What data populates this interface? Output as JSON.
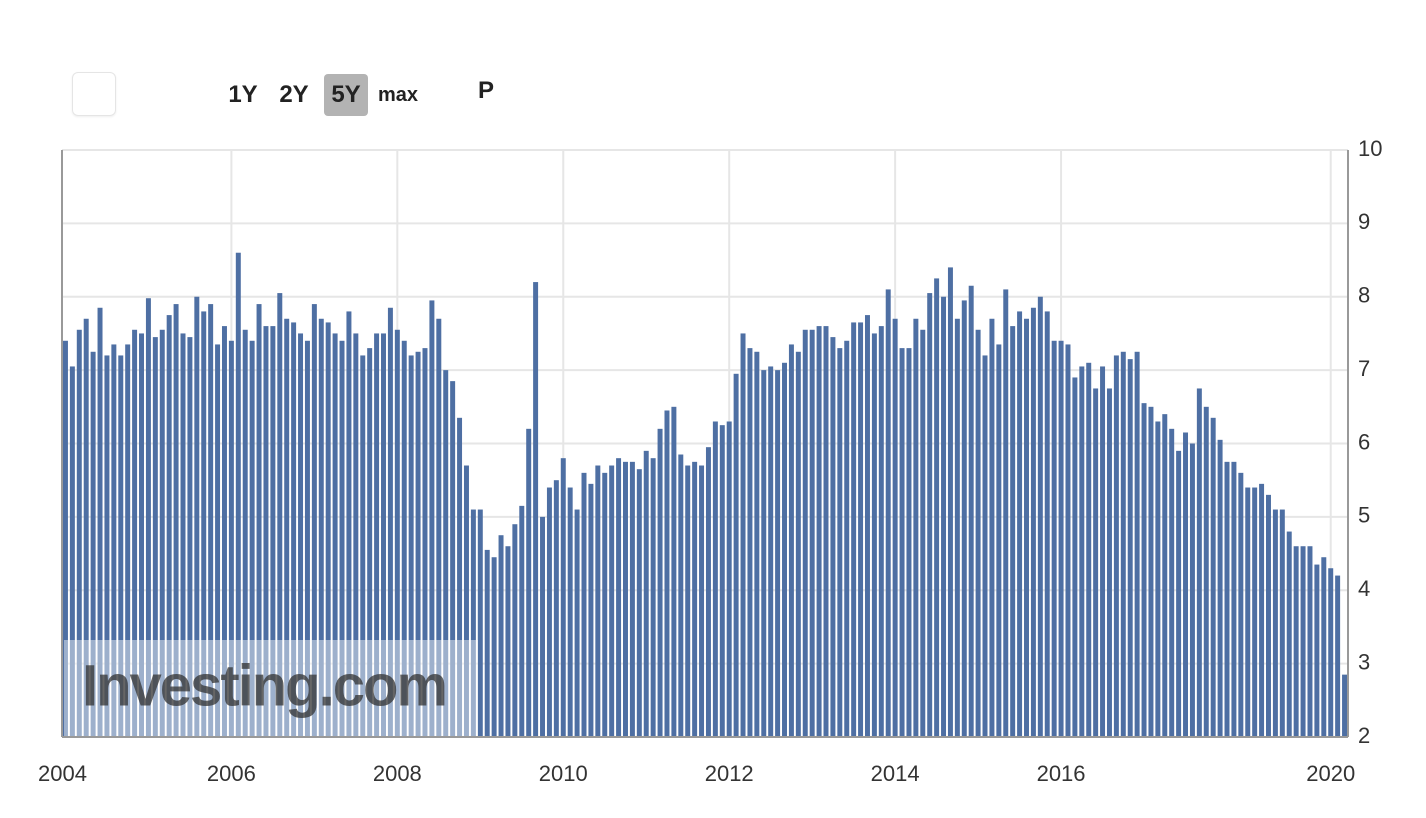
{
  "range_buttons": [
    "1Y",
    "2Y",
    "5Y",
    "max"
  ],
  "selected_range": "5Y",
  "extra_button": "P",
  "chart_data": {
    "type": "bar",
    "watermark": "Investing.com",
    "color": "#4e6fa3",
    "ylim": [
      2,
      10
    ],
    "yticks": [
      2,
      3,
      4,
      5,
      6,
      7,
      8,
      9,
      10
    ],
    "grid": true,
    "categories": [
      "2004",
      null,
      null,
      null,
      null,
      null,
      null,
      null,
      null,
      null,
      null,
      null,
      null,
      null,
      null,
      null,
      null,
      null,
      null,
      null,
      null,
      null,
      null,
      null,
      "2006",
      null,
      null,
      null,
      null,
      null,
      null,
      null,
      null,
      null,
      null,
      null,
      null,
      null,
      null,
      null,
      null,
      null,
      null,
      null,
      null,
      null,
      null,
      null,
      "2008",
      null,
      null,
      null,
      null,
      null,
      null,
      null,
      null,
      null,
      null,
      null,
      null,
      null,
      null,
      null,
      null,
      null,
      null,
      null,
      null,
      null,
      null,
      null,
      "2010",
      null,
      null,
      null,
      null,
      null,
      null,
      null,
      null,
      null,
      null,
      null,
      null,
      null,
      null,
      null,
      null,
      null,
      null,
      null,
      null,
      null,
      null,
      null,
      "2012",
      null,
      null,
      null,
      null,
      null,
      null,
      null,
      null,
      null,
      null,
      null,
      null,
      null,
      null,
      null,
      null,
      null,
      null,
      null,
      null,
      null,
      null,
      null,
      "2014",
      null,
      null,
      null,
      null,
      null,
      null,
      null,
      null,
      null,
      null,
      null,
      null,
      null,
      null,
      null,
      null,
      null,
      null,
      null,
      null,
      null,
      null,
      null,
      "2016",
      null,
      null,
      null,
      null,
      null,
      null,
      null,
      null,
      null,
      null,
      null,
      null,
      null,
      null,
      null,
      null,
      null,
      null,
      null,
      null,
      null,
      null,
      null,
      null,
      null,
      null,
      null,
      null,
      null,
      null,
      null,
      null,
      null,
      null,
      null,
      null,
      null,
      null,
      "2020",
      null,
      null
    ],
    "values": [
      7.4,
      7.05,
      7.55,
      7.7,
      7.25,
      7.85,
      7.2,
      7.35,
      7.2,
      7.35,
      7.55,
      7.5,
      7.98,
      7.45,
      7.55,
      7.75,
      7.9,
      7.5,
      7.45,
      8.0,
      7.8,
      7.9,
      7.35,
      7.6,
      7.4,
      8.6,
      7.55,
      7.4,
      7.9,
      7.6,
      7.6,
      8.05,
      7.7,
      7.65,
      7.5,
      7.4,
      7.9,
      7.7,
      7.65,
      7.5,
      7.4,
      7.8,
      7.5,
      7.2,
      7.3,
      7.5,
      7.5,
      7.85,
      7.55,
      7.4,
      7.2,
      7.25,
      7.3,
      7.95,
      7.7,
      7.0,
      6.85,
      6.35,
      5.7,
      5.1,
      5.1,
      4.55,
      4.45,
      4.75,
      4.6,
      4.9,
      5.15,
      6.2,
      8.2,
      5.0,
      5.4,
      5.5,
      5.8,
      5.4,
      5.1,
      5.6,
      5.45,
      5.7,
      5.6,
      5.7,
      5.8,
      5.75,
      5.75,
      5.65,
      5.9,
      5.8,
      6.2,
      6.45,
      6.5,
      5.85,
      5.7,
      5.75,
      5.7,
      5.95,
      6.3,
      6.25,
      6.3,
      6.95,
      7.5,
      7.3,
      7.25,
      7.0,
      7.05,
      7.0,
      7.1,
      7.35,
      7.25,
      7.55,
      7.55,
      7.6,
      7.6,
      7.45,
      7.3,
      7.4,
      7.65,
      7.65,
      7.75,
      7.5,
      7.6,
      8.1,
      7.7,
      7.3,
      7.3,
      7.7,
      7.55,
      8.05,
      8.25,
      8.0,
      8.4,
      7.7,
      7.95,
      8.15,
      7.55,
      7.2,
      7.7,
      7.35,
      8.1,
      7.6,
      7.8,
      7.7,
      7.85,
      8.0,
      7.8,
      7.4,
      7.4,
      7.35,
      6.9,
      7.05,
      7.1,
      6.75,
      7.05,
      6.75,
      7.2,
      7.25,
      7.15,
      7.25,
      6.55,
      6.5,
      6.3,
      6.4,
      6.2,
      5.9,
      6.15,
      6.0,
      6.75,
      6.5,
      6.35,
      6.05,
      5.75,
      5.75,
      5.6,
      5.4,
      5.4,
      5.45,
      5.3,
      5.1,
      5.1,
      4.8,
      4.6,
      4.6,
      4.6,
      4.35,
      4.45,
      4.3,
      4.2,
      2.85
    ]
  }
}
